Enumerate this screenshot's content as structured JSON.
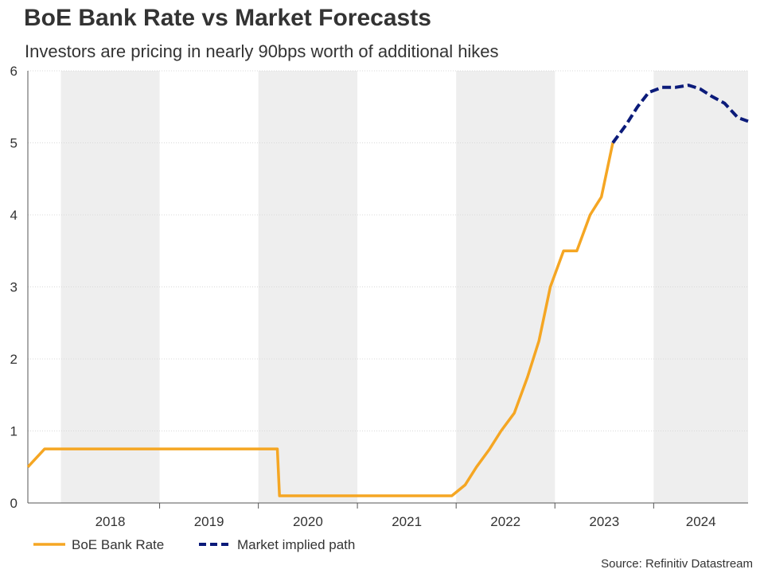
{
  "title": "BoE Bank Rate vs Market Forecasts",
  "subtitle": "Investors are pricing in nearly 90bps worth of additional hikes",
  "source": "Source: Refinitiv Datastream",
  "colors": {
    "bank_rate": "#F5A623",
    "market_path": "#0B1B7A",
    "band": "#EEEEEE",
    "grid": "#D9D9D9",
    "axis": "#555555"
  },
  "chart_data": {
    "type": "line",
    "xlabel": "",
    "ylabel": "",
    "x_range": [
      "2017-09-01",
      "2024-12-15"
    ],
    "ylim": [
      0,
      6
    ],
    "y_ticks": [
      0,
      1,
      2,
      3,
      4,
      5,
      6
    ],
    "x_tick_labels": [
      "2018",
      "2019",
      "2020",
      "2021",
      "2022",
      "2023",
      "2024"
    ],
    "shaded_years": [
      "2018",
      "2020",
      "2022",
      "2024"
    ],
    "grid": true,
    "legend_position": "bottom-left",
    "series": [
      {
        "name": "BoE Bank Rate",
        "style": "solid",
        "x": [
          "2017-09-01",
          "2017-11-02",
          "2018-08-02",
          "2020-03-11",
          "2020-03-19",
          "2021-12-16",
          "2022-02-03",
          "2022-03-17",
          "2022-05-05",
          "2022-06-16",
          "2022-08-04",
          "2022-09-22",
          "2022-11-03",
          "2022-12-15",
          "2023-02-02",
          "2023-03-23",
          "2023-05-11",
          "2023-06-22",
          "2023-08-03"
        ],
        "values": [
          0.5,
          0.75,
          0.75,
          0.75,
          0.1,
          0.1,
          0.25,
          0.5,
          0.75,
          1.0,
          1.25,
          1.75,
          2.25,
          3.0,
          3.5,
          3.5,
          4.0,
          4.25,
          5.0
        ]
      },
      {
        "name": "Market implied path",
        "style": "dashed",
        "x": [
          "2023-08-03",
          "2023-09-21",
          "2023-11-02",
          "2023-12-14",
          "2024-02-01",
          "2024-03-21",
          "2024-05-09",
          "2024-06-20",
          "2024-08-01",
          "2024-09-19",
          "2024-11-07",
          "2024-12-15"
        ],
        "values": [
          5.0,
          5.25,
          5.5,
          5.7,
          5.77,
          5.77,
          5.8,
          5.75,
          5.65,
          5.55,
          5.35,
          5.3
        ]
      }
    ]
  }
}
